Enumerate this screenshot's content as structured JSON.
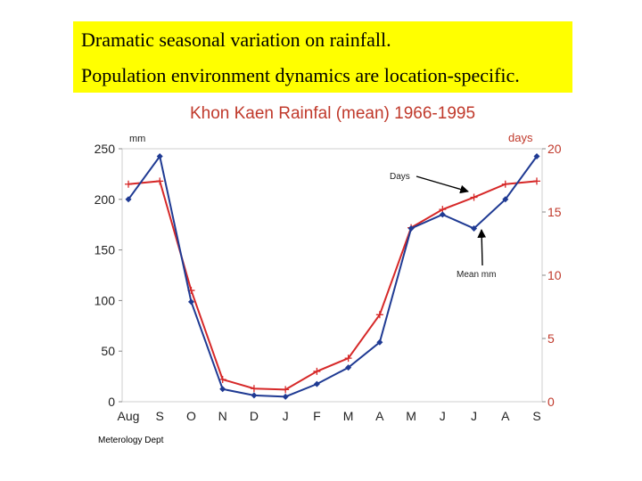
{
  "banner": {
    "line1": "Dramatic seasonal variation on rainfall.",
    "line2": "Population environment dynamics are location-specific.",
    "bg_color": "#ffff00"
  },
  "chart_data": {
    "type": "line",
    "title": "Khon Kaen Rainfal (mean) 1966-1995",
    "categories": [
      "Aug",
      "S",
      "O",
      "N",
      "D",
      "J",
      "F",
      "M",
      "A",
      "M",
      "J",
      "J",
      "A",
      "S"
    ],
    "left_axis": {
      "unit_label": "mm",
      "range": [
        0,
        250
      ],
      "ticks": [
        0,
        50,
        100,
        150,
        200,
        250
      ]
    },
    "right_axis": {
      "unit_label": "days",
      "range": [
        0,
        20
      ],
      "ticks": [
        0,
        5,
        10,
        15,
        20
      ]
    },
    "series": [
      {
        "annotation": "Mean mm",
        "axis": "left",
        "color": "#d62828",
        "marker": "cross",
        "values": [
          215,
          218,
          110,
          22,
          13,
          12,
          30,
          43,
          86,
          172,
          190,
          202,
          215,
          218
        ]
      },
      {
        "annotation": "Days",
        "axis": "right",
        "color": "#1f3a93",
        "marker": "diamond",
        "values": [
          16,
          19.4,
          7.9,
          1,
          0.5,
          0.4,
          1.4,
          2.7,
          4.7,
          13.7,
          14.8,
          13.7,
          16,
          19.4
        ]
      }
    ],
    "annotations": [
      {
        "text": "Days",
        "points_to_series": 1,
        "category_index": 11
      },
      {
        "text": "Mean mm",
        "points_to_series": 0,
        "category_index": 11
      }
    ],
    "source": "Meterology Dept",
    "title_color": "#c0392b",
    "right_axis_color": "#c0392b",
    "grid": false
  }
}
